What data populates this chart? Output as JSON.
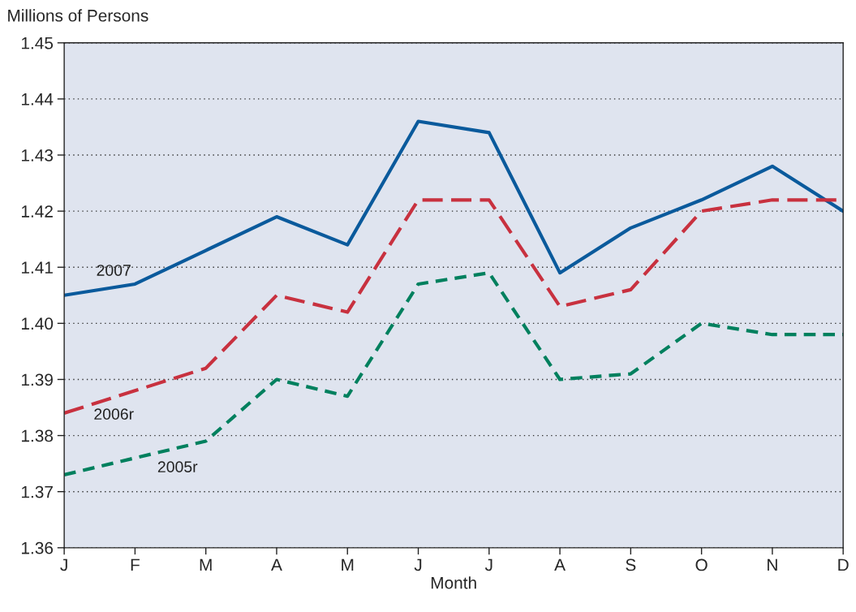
{
  "chart_data": {
    "type": "line",
    "ylabel": "Millions of Persons",
    "xlabel": "Month",
    "categories": [
      "J",
      "F",
      "M",
      "A",
      "M",
      "J",
      "J",
      "A",
      "S",
      "O",
      "N",
      "D"
    ],
    "series": [
      {
        "name": "2007",
        "color": "#0a5a9c",
        "line_style": "solid",
        "values": [
          1.405,
          1.407,
          1.413,
          1.419,
          1.414,
          1.436,
          1.434,
          1.409,
          1.417,
          1.422,
          1.428,
          1.42
        ]
      },
      {
        "name": "2006r",
        "color": "#c8313f",
        "line_style": "dashed",
        "values": [
          1.384,
          1.388,
          1.392,
          1.405,
          1.402,
          1.422,
          1.422,
          1.403,
          1.406,
          1.42,
          1.422,
          1.422
        ]
      },
      {
        "name": "2005r",
        "color": "#00805e",
        "line_style": "dotted",
        "values": [
          1.373,
          1.376,
          1.379,
          1.39,
          1.387,
          1.407,
          1.409,
          1.39,
          1.391,
          1.4,
          1.398,
          1.398
        ]
      }
    ],
    "ylim": [
      1.36,
      1.45
    ],
    "yticks": [
      1.36,
      1.37,
      1.38,
      1.39,
      {
        "value": 1.4,
        "label": "1.40"
      },
      1.41,
      1.42,
      1.43,
      1.44,
      1.45
    ],
    "grid": "y",
    "legend": false,
    "marker": "none"
  }
}
